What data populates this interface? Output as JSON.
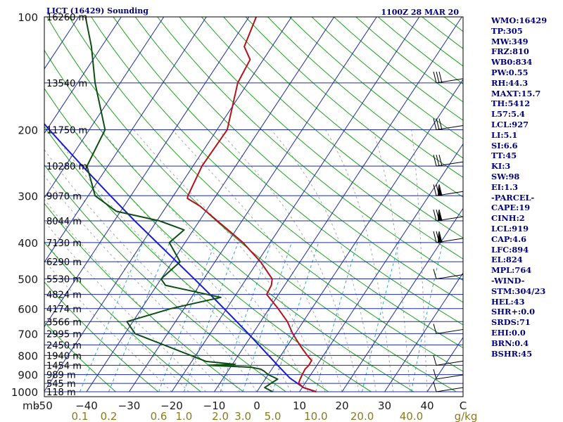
{
  "header": {
    "station": "LICT (16429) Sounding",
    "datetime": "1100Z 28 MAR 20"
  },
  "indices": [
    "WMO:16429",
    "TP:305",
    "MW:349",
    "FRZ:810",
    "WB0:834",
    "PW:0.55",
    "RH:44.3",
    "MAXT:15.7",
    "TH:5412",
    "L57:5.4",
    "LCL:927",
    "LI:5.1",
    "SI:6.6",
    "TT:45",
    "KI:3",
    "SW:98",
    "EI:1.3",
    "-PARCEL-",
    "CAPE:19",
    "CINH:2",
    "LCL:919",
    "CAP:4.6",
    "LFC:894",
    "EL:824",
    "MPL:764",
    "-WIND-",
    "STM:304/23",
    "HEL:43",
    "SHR+:0.0",
    "SRDS:71",
    "EHI:0.0",
    "BRN:0.4",
    "BSHR:45"
  ],
  "colors": {
    "background": "#ffffff",
    "isobar": "#1c2c9e",
    "isotherm": "#1c2c9e",
    "dry_adiabat": "#1ea01e",
    "moist_adiabat": "#a7a7a7",
    "mixing_ratio": "#3aa3c8",
    "temperature": "#b4121a",
    "dewpoint": "#0e4e12",
    "parcel": "#1a1ad2",
    "wind_barb": "#000000",
    "text": "#00007a",
    "mixing_ratio_label": "#8a7a1a"
  },
  "chart_data": {
    "type": "skew-t log-p",
    "title": "LICT (16429) Sounding",
    "subtitle": "1100Z 28 MAR 20",
    "y_axis_unit": "mb",
    "x_axis_unit": "C",
    "mixing_ratio_unit": "g/kg",
    "pressure_ticks": [
      100,
      200,
      300,
      400,
      500,
      600,
      700,
      800,
      900,
      1000
    ],
    "temperature_ticks": [
      -50,
      -40,
      -30,
      -20,
      -10,
      0,
      10,
      20,
      30,
      40
    ],
    "temperature_tick_labels": [
      "-50",
      "−40",
      "−30",
      "−20",
      "−10",
      "0",
      "10",
      "20",
      "30",
      "40"
    ],
    "mixing_ratio_labels": [
      "0.1",
      "0.2",
      "0.6",
      "1.0",
      "2.0",
      "3.0",
      "5.0",
      "10.0",
      "20.0",
      "40.0"
    ],
    "mixing_ratio_values": [
      0.1,
      0.2,
      0.6,
      1.0,
      2.0,
      3.0,
      5.0,
      10.0,
      20.0,
      40.0
    ],
    "height_levels": [
      {
        "p": 100,
        "label": "16260 m"
      },
      {
        "p": 150,
        "label": "13540 m"
      },
      {
        "p": 200,
        "label": "11750 m"
      },
      {
        "p": 250,
        "label": "10280 m"
      },
      {
        "p": 300,
        "label": "9070 m"
      },
      {
        "p": 350,
        "label": "8044 m"
      },
      {
        "p": 400,
        "label": "7130 m"
      },
      {
        "p": 450,
        "label": "6290 m"
      },
      {
        "p": 500,
        "label": "5530 m"
      },
      {
        "p": 550,
        "label": "4824 m"
      },
      {
        "p": 600,
        "label": "4174 m"
      },
      {
        "p": 650,
        "label": "3566 m"
      },
      {
        "p": 700,
        "label": "2995 m"
      },
      {
        "p": 750,
        "label": "2450 m"
      },
      {
        "p": 800,
        "label": "1940 m"
      },
      {
        "p": 850,
        "label": "1454 m"
      },
      {
        "p": 900,
        "label": "989 m"
      },
      {
        "p": 950,
        "label": "545 m"
      },
      {
        "p": 1000,
        "label": "118 m"
      }
    ],
    "temperature_profile": [
      {
        "p": 1000,
        "t": 13.9
      },
      {
        "p": 975,
        "t": 10.3
      },
      {
        "p": 950,
        "t": 8.5
      },
      {
        "p": 925,
        "t": 8.2
      },
      {
        "p": 900,
        "t": 8.0
      },
      {
        "p": 870,
        "t": 7.8
      },
      {
        "p": 850,
        "t": 8.1
      },
      {
        "p": 825,
        "t": 8.0
      },
      {
        "p": 800,
        "t": 6.2
      },
      {
        "p": 775,
        "t": 4.5
      },
      {
        "p": 750,
        "t": 2.8
      },
      {
        "p": 700,
        "t": -0.6
      },
      {
        "p": 650,
        "t": -3.7
      },
      {
        "p": 600,
        "t": -7.9
      },
      {
        "p": 550,
        "t": -12.8
      },
      {
        "p": 520,
        "t": -13.1
      },
      {
        "p": 500,
        "t": -13.9
      },
      {
        "p": 450,
        "t": -19.3
      },
      {
        "p": 400,
        "t": -26.4
      },
      {
        "p": 350,
        "t": -35.8
      },
      {
        "p": 320,
        "t": -42.1
      },
      {
        "p": 305,
        "t": -46.3
      },
      {
        "p": 300,
        "t": -46.6
      },
      {
        "p": 250,
        "t": -47.9
      },
      {
        "p": 200,
        "t": -47.6
      },
      {
        "p": 150,
        "t": -52.4
      },
      {
        "p": 130,
        "t": -53.1
      },
      {
        "p": 120,
        "t": -56.5
      },
      {
        "p": 100,
        "t": -58.3
      }
    ],
    "dewpoint_profile": [
      {
        "p": 1000,
        "t": 3.7
      },
      {
        "p": 975,
        "t": 1.2
      },
      {
        "p": 950,
        "t": 2.0
      },
      {
        "p": 925,
        "t": 2.9
      },
      {
        "p": 900,
        "t": 0.0
      },
      {
        "p": 880,
        "t": -1.6
      },
      {
        "p": 870,
        "t": -2.6
      },
      {
        "p": 860,
        "t": -5.2
      },
      {
        "p": 850,
        "t": -15.5
      },
      {
        "p": 845,
        "t": -9.4
      },
      {
        "p": 830,
        "t": -16.6
      },
      {
        "p": 700,
        "t": -37.6
      },
      {
        "p": 650,
        "t": -41.4
      },
      {
        "p": 600,
        "t": -33.1
      },
      {
        "p": 560,
        "t": -23.1
      },
      {
        "p": 520,
        "t": -38.0
      },
      {
        "p": 500,
        "t": -40.0
      },
      {
        "p": 450,
        "t": -38.2
      },
      {
        "p": 400,
        "t": -43.7
      },
      {
        "p": 370,
        "t": -42.2
      },
      {
        "p": 350,
        "t": -49.4
      },
      {
        "p": 330,
        "t": -61.0
      },
      {
        "p": 300,
        "t": -68.4
      },
      {
        "p": 250,
        "t": -74.9
      },
      {
        "p": 200,
        "t": -76.3
      },
      {
        "p": 150,
        "t": -85.9
      },
      {
        "p": 120,
        "t": -92.4
      },
      {
        "p": 100,
        "t": -98.4
      }
    ],
    "parcel_profile": [
      {
        "p": 1000,
        "t": 13.9
      },
      {
        "p": 975,
        "t": 10.3
      },
      {
        "p": 919,
        "t": 5.6
      },
      {
        "p": 900,
        "t": 4.3
      },
      {
        "p": 850,
        "t": 0.8
      },
      {
        "p": 800,
        "t": -2.9
      },
      {
        "p": 750,
        "t": -6.8
      },
      {
        "p": 700,
        "t": -11.0
      },
      {
        "p": 650,
        "t": -15.6
      },
      {
        "p": 600,
        "t": -20.6
      },
      {
        "p": 550,
        "t": -26.1
      },
      {
        "p": 500,
        "t": -32.2
      },
      {
        "p": 450,
        "t": -39.0
      },
      {
        "p": 400,
        "t": -46.6
      },
      {
        "p": 350,
        "t": -55.2
      },
      {
        "p": 300,
        "t": -64.8
      },
      {
        "p": 250,
        "t": -76.0
      },
      {
        "p": 200,
        "t": -89.4
      },
      {
        "p": 150,
        "t": -106.2
      },
      {
        "p": 125,
        "t": -116.7
      }
    ],
    "wind_levels": [
      150,
      200,
      250,
      300,
      350,
      400,
      500,
      700,
      850,
      925,
      1000
    ],
    "grid": true
  }
}
